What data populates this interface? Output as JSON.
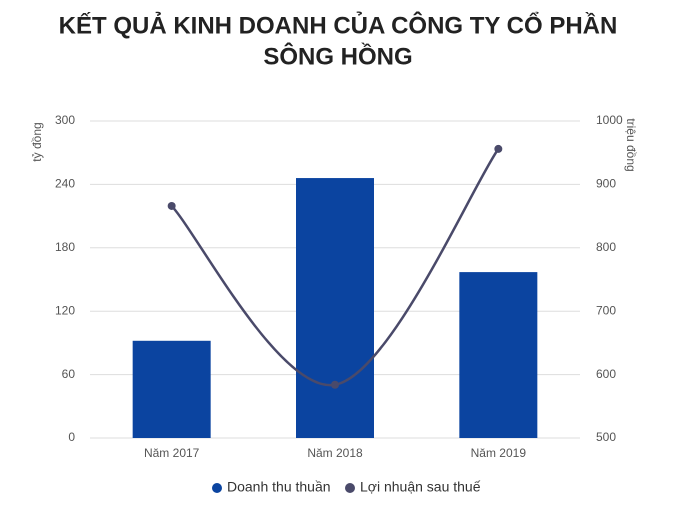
{
  "chart_data": {
    "type": "bar",
    "title": [
      "KẾT QUẢ KINH DOANH CỦA CÔNG TY CỔ PHẦN",
      "SÔNG HỒNG"
    ],
    "y_label": "tỷ đồng",
    "y2_label": "triệu đồng",
    "categories": [
      "Năm 2017",
      "Năm 2018",
      "Năm 2019"
    ],
    "series": [
      {
        "name": "Doanh thu thuần",
        "color": "#0b44a0",
        "values": [
          92,
          246,
          157
        ]
      },
      {
        "name": "Lợi nhuận sau thuế",
        "color": "#4a4a6a",
        "type": "line",
        "axis": "y2",
        "values": [
          866,
          584,
          956
        ]
      }
    ],
    "ylim": [
      0,
      300
    ],
    "yticks": [
      0,
      60,
      120,
      180,
      240,
      300
    ],
    "y2lim": [
      500,
      1000
    ],
    "y2ticks": [
      500,
      600,
      700,
      800,
      900,
      1000
    ],
    "grid": true,
    "legend": "bottom"
  }
}
